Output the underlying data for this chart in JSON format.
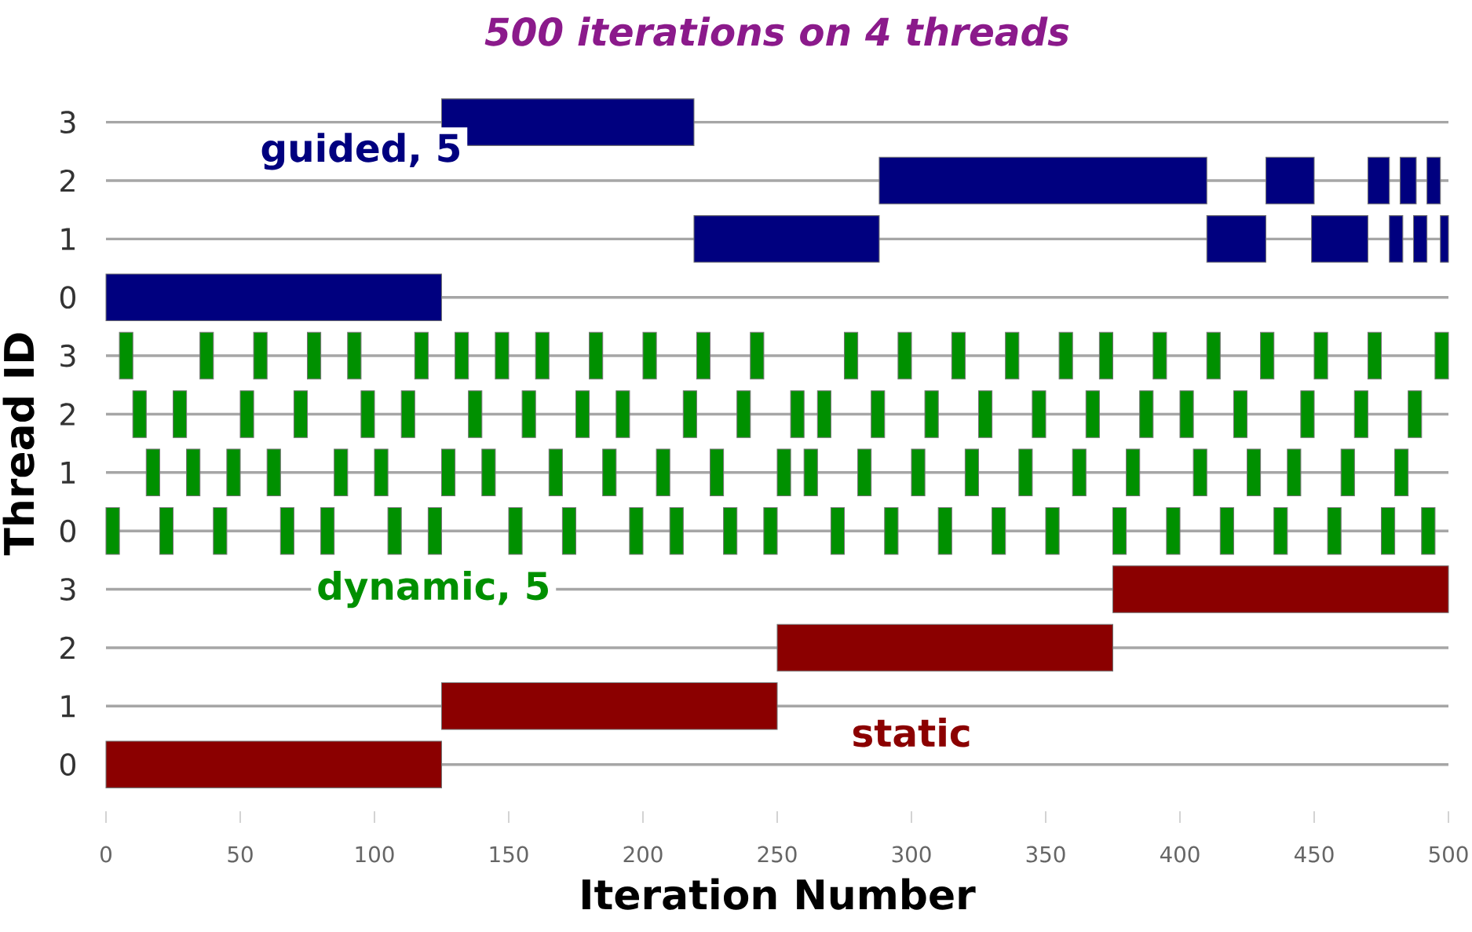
{
  "chart_data": {
    "type": "bar",
    "orientation": "horizontal",
    "title": "500 iterations on 4 threads",
    "xlabel": "Iteration Number",
    "ylabel": "Thread ID",
    "categories": [
      "3",
      "2",
      "1",
      "0",
      "3",
      "2",
      "1",
      "0",
      "3",
      "2",
      "1",
      "0"
    ],
    "xlim": [
      0,
      500
    ],
    "xticks": [
      0,
      50,
      100,
      150,
      200,
      250,
      300,
      350,
      400,
      450,
      500
    ],
    "grid": "y",
    "annotations": [
      "guided, 5",
      "dynamic, 5",
      "static"
    ],
    "series": [
      {
        "colors": [
          "#00007f",
          "#00007f",
          "#00007f",
          "#00007f",
          "#009000",
          "#009000",
          "#009000",
          "#009000",
          "#8b0000",
          "#8b0000",
          "#8b0000",
          "#8b0000"
        ],
        "base": [
          125,
          288,
          219,
          0,
          5,
          10,
          15,
          0,
          375,
          250,
          125,
          0
        ],
        "values": [
          94,
          122,
          69,
          125,
          5,
          5,
          5,
          5,
          125,
          125,
          125,
          125
        ]
      },
      {
        "colors": [
          "#00007f",
          "#00007f",
          "#00007f",
          "#00007f",
          "#009000",
          "#009000",
          "#009000",
          "#009000",
          "#8b0000",
          "#8b0000",
          "#8b0000",
          "#8b0000"
        ],
        "base": [
          null,
          432,
          410,
          null,
          35,
          25,
          30,
          20,
          null,
          null,
          null,
          null
        ],
        "values": [
          null,
          18,
          22,
          null,
          5,
          5,
          5,
          5,
          null,
          null,
          null,
          null
        ]
      },
      {
        "colors": [
          "#00007f",
          "#00007f",
          "#00007f",
          "#00007f",
          "#009000",
          "#009000",
          "#009000",
          "#009000",
          "#8b0000",
          "#8b0000",
          "#8b0000",
          "#8b0000"
        ],
        "base": [
          null,
          470,
          449,
          null,
          55,
          50,
          45,
          40,
          null,
          null,
          null,
          null
        ],
        "values": [
          null,
          8,
          21,
          null,
          5,
          5,
          5,
          5,
          null,
          null,
          null,
          null
        ]
      },
      {
        "colors": [
          "#00007f",
          "#00007f",
          "#00007f",
          "#00007f",
          "#009000",
          "#009000",
          "#009000",
          "#009000",
          "#8b0000",
          "#8b0000",
          "#8b0000",
          "#8b0000"
        ],
        "base": [
          null,
          482,
          478,
          null,
          75,
          70,
          60,
          65,
          null,
          null,
          null,
          null
        ],
        "values": [
          null,
          6,
          5,
          null,
          5,
          5,
          5,
          5,
          null,
          null,
          null,
          null
        ]
      },
      {
        "colors": [
          "#00007f",
          "#00007f",
          "#00007f",
          "#00007f",
          "#009000",
          "#009000",
          "#009000",
          "#009000",
          "#8b0000",
          "#8b0000",
          "#8b0000",
          "#8b0000"
        ],
        "base": [
          null,
          492,
          487,
          null,
          90,
          95,
          85,
          80,
          null,
          null,
          null,
          null
        ],
        "values": [
          null,
          5,
          5,
          null,
          5,
          5,
          5,
          5,
          null,
          null,
          null,
          null
        ]
      },
      {
        "colors": [
          "#00007f",
          "#00007f",
          "#00007f",
          "#00007f",
          "#009000",
          "#009000",
          "#009000",
          "#009000",
          "#8b0000",
          "#8b0000",
          "#8b0000",
          "#8b0000"
        ],
        "base": [
          null,
          null,
          497,
          null,
          115,
          110,
          100,
          105,
          null,
          null,
          null,
          null
        ],
        "values": [
          null,
          null,
          3,
          null,
          5,
          5,
          5,
          5,
          null,
          null,
          null,
          null
        ]
      },
      {
        "colors": [
          "#00007f",
          "#00007f",
          "#00007f",
          "#00007f",
          "#009000",
          "#009000",
          "#009000",
          "#009000",
          "#8b0000",
          "#8b0000",
          "#8b0000",
          "#8b0000"
        ],
        "base": [
          null,
          null,
          null,
          null,
          130,
          135,
          125,
          120,
          null,
          null,
          null,
          null
        ],
        "values": [
          null,
          null,
          null,
          null,
          5,
          5,
          5,
          5,
          null,
          null,
          null,
          null
        ]
      },
      {
        "colors": [
          "#00007f",
          "#00007f",
          "#00007f",
          "#00007f",
          "#009000",
          "#009000",
          "#009000",
          "#009000",
          "#8b0000",
          "#8b0000",
          "#8b0000",
          "#8b0000"
        ],
        "base": [
          null,
          null,
          null,
          null,
          145,
          155,
          140,
          150,
          null,
          null,
          null,
          null
        ],
        "values": [
          null,
          null,
          null,
          null,
          5,
          5,
          5,
          5,
          null,
          null,
          null,
          null
        ]
      },
      {
        "colors": [
          "#00007f",
          "#00007f",
          "#00007f",
          "#00007f",
          "#009000",
          "#009000",
          "#009000",
          "#009000",
          "#8b0000",
          "#8b0000",
          "#8b0000",
          "#8b0000"
        ],
        "base": [
          null,
          null,
          null,
          null,
          160,
          175,
          165,
          170,
          null,
          null,
          null,
          null
        ],
        "values": [
          null,
          null,
          null,
          null,
          5,
          5,
          5,
          5,
          null,
          null,
          null,
          null
        ]
      },
      {
        "colors": [
          "#00007f",
          "#00007f",
          "#00007f",
          "#00007f",
          "#009000",
          "#009000",
          "#009000",
          "#009000",
          "#8b0000",
          "#8b0000",
          "#8b0000",
          "#8b0000"
        ],
        "base": [
          null,
          null,
          null,
          null,
          180,
          190,
          185,
          195,
          null,
          null,
          null,
          null
        ],
        "values": [
          null,
          null,
          null,
          null,
          5,
          5,
          5,
          5,
          null,
          null,
          null,
          null
        ]
      },
      {
        "colors": [
          "#00007f",
          "#00007f",
          "#00007f",
          "#00007f",
          "#009000",
          "#009000",
          "#009000",
          "#009000",
          "#8b0000",
          "#8b0000",
          "#8b0000",
          "#8b0000"
        ],
        "base": [
          null,
          null,
          null,
          null,
          200,
          215,
          205,
          210,
          null,
          null,
          null,
          null
        ],
        "values": [
          null,
          null,
          null,
          null,
          5,
          5,
          5,
          5,
          null,
          null,
          null,
          null
        ]
      },
      {
        "colors": [
          "#00007f",
          "#00007f",
          "#00007f",
          "#00007f",
          "#009000",
          "#009000",
          "#009000",
          "#009000",
          "#8b0000",
          "#8b0000",
          "#8b0000",
          "#8b0000"
        ],
        "base": [
          null,
          null,
          null,
          null,
          220,
          235,
          225,
          230,
          null,
          null,
          null,
          null
        ],
        "values": [
          null,
          null,
          null,
          null,
          5,
          5,
          5,
          5,
          null,
          null,
          null,
          null
        ]
      },
      {
        "colors": [
          "#00007f",
          "#00007f",
          "#00007f",
          "#00007f",
          "#009000",
          "#009000",
          "#009000",
          "#009000",
          "#8b0000",
          "#8b0000",
          "#8b0000",
          "#8b0000"
        ],
        "base": [
          null,
          null,
          null,
          null,
          240,
          255,
          250,
          245,
          null,
          null,
          null,
          null
        ],
        "values": [
          null,
          null,
          null,
          null,
          5,
          5,
          5,
          5,
          null,
          null,
          null,
          null
        ]
      },
      {
        "colors": [
          "#00007f",
          "#00007f",
          "#00007f",
          "#00007f",
          "#009000",
          "#009000",
          "#009000",
          "#009000",
          "#8b0000",
          "#8b0000",
          "#8b0000",
          "#8b0000"
        ],
        "base": [
          null,
          null,
          null,
          null,
          275,
          265,
          260,
          270,
          null,
          null,
          null,
          null
        ],
        "values": [
          null,
          null,
          null,
          null,
          5,
          5,
          5,
          5,
          null,
          null,
          null,
          null
        ]
      },
      {
        "colors": [
          "#00007f",
          "#00007f",
          "#00007f",
          "#00007f",
          "#009000",
          "#009000",
          "#009000",
          "#009000",
          "#8b0000",
          "#8b0000",
          "#8b0000",
          "#8b0000"
        ],
        "base": [
          null,
          null,
          null,
          null,
          295,
          285,
          280,
          290,
          null,
          null,
          null,
          null
        ],
        "values": [
          null,
          null,
          null,
          null,
          5,
          5,
          5,
          5,
          null,
          null,
          null,
          null
        ]
      },
      {
        "colors": [
          "#00007f",
          "#00007f",
          "#00007f",
          "#00007f",
          "#009000",
          "#009000",
          "#009000",
          "#009000",
          "#8b0000",
          "#8b0000",
          "#8b0000",
          "#8b0000"
        ],
        "base": [
          null,
          null,
          null,
          null,
          315,
          305,
          300,
          310,
          null,
          null,
          null,
          null
        ],
        "values": [
          null,
          null,
          null,
          null,
          5,
          5,
          5,
          5,
          null,
          null,
          null,
          null
        ]
      },
      {
        "colors": [
          "#00007f",
          "#00007f",
          "#00007f",
          "#00007f",
          "#009000",
          "#009000",
          "#009000",
          "#009000",
          "#8b0000",
          "#8b0000",
          "#8b0000",
          "#8b0000"
        ],
        "base": [
          null,
          null,
          null,
          null,
          335,
          325,
          320,
          330,
          null,
          null,
          null,
          null
        ],
        "values": [
          null,
          null,
          null,
          null,
          5,
          5,
          5,
          5,
          null,
          null,
          null,
          null
        ]
      },
      {
        "colors": [
          "#00007f",
          "#00007f",
          "#00007f",
          "#00007f",
          "#009000",
          "#009000",
          "#009000",
          "#009000",
          "#8b0000",
          "#8b0000",
          "#8b0000",
          "#8b0000"
        ],
        "base": [
          null,
          null,
          null,
          null,
          355,
          345,
          340,
          350,
          null,
          null,
          null,
          null
        ],
        "values": [
          null,
          null,
          null,
          null,
          5,
          5,
          5,
          5,
          null,
          null,
          null,
          null
        ]
      },
      {
        "colors": [
          "#00007f",
          "#00007f",
          "#00007f",
          "#00007f",
          "#009000",
          "#009000",
          "#009000",
          "#009000",
          "#8b0000",
          "#8b0000",
          "#8b0000",
          "#8b0000"
        ],
        "base": [
          null,
          null,
          null,
          null,
          370,
          365,
          360,
          375,
          null,
          null,
          null,
          null
        ],
        "values": [
          null,
          null,
          null,
          null,
          5,
          5,
          5,
          5,
          null,
          null,
          null,
          null
        ]
      },
      {
        "colors": [
          "#00007f",
          "#00007f",
          "#00007f",
          "#00007f",
          "#009000",
          "#009000",
          "#009000",
          "#009000",
          "#8b0000",
          "#8b0000",
          "#8b0000",
          "#8b0000"
        ],
        "base": [
          null,
          null,
          null,
          null,
          390,
          385,
          380,
          395,
          null,
          null,
          null,
          null
        ],
        "values": [
          null,
          null,
          null,
          null,
          5,
          5,
          5,
          5,
          null,
          null,
          null,
          null
        ]
      },
      {
        "colors": [
          "#00007f",
          "#00007f",
          "#00007f",
          "#00007f",
          "#009000",
          "#009000",
          "#009000",
          "#009000",
          "#8b0000",
          "#8b0000",
          "#8b0000",
          "#8b0000"
        ],
        "base": [
          null,
          null,
          null,
          null,
          410,
          400,
          405,
          415,
          null,
          null,
          null,
          null
        ],
        "values": [
          null,
          null,
          null,
          null,
          5,
          5,
          5,
          5,
          null,
          null,
          null,
          null
        ]
      },
      {
        "colors": [
          "#00007f",
          "#00007f",
          "#00007f",
          "#00007f",
          "#009000",
          "#009000",
          "#009000",
          "#009000",
          "#8b0000",
          "#8b0000",
          "#8b0000",
          "#8b0000"
        ],
        "base": [
          null,
          null,
          null,
          null,
          430,
          420,
          425,
          435,
          null,
          null,
          null,
          null
        ],
        "values": [
          null,
          null,
          null,
          null,
          5,
          5,
          5,
          5,
          null,
          null,
          null,
          null
        ]
      },
      {
        "colors": [
          "#00007f",
          "#00007f",
          "#00007f",
          "#00007f",
          "#009000",
          "#009000",
          "#009000",
          "#009000",
          "#8b0000",
          "#8b0000",
          "#8b0000",
          "#8b0000"
        ],
        "base": [
          null,
          null,
          null,
          null,
          450,
          445,
          440,
          455,
          null,
          null,
          null,
          null
        ],
        "values": [
          null,
          null,
          null,
          null,
          5,
          5,
          5,
          5,
          null,
          null,
          null,
          null
        ]
      },
      {
        "colors": [
          "#00007f",
          "#00007f",
          "#00007f",
          "#00007f",
          "#009000",
          "#009000",
          "#009000",
          "#009000",
          "#8b0000",
          "#8b0000",
          "#8b0000",
          "#8b0000"
        ],
        "base": [
          null,
          null,
          null,
          null,
          470,
          465,
          460,
          475,
          null,
          null,
          null,
          null
        ],
        "values": [
          null,
          null,
          null,
          null,
          5,
          5,
          5,
          5,
          null,
          null,
          null,
          null
        ]
      },
      {
        "colors": [
          "#00007f",
          "#00007f",
          "#00007f",
          "#00007f",
          "#009000",
          "#009000",
          "#009000",
          "#009000",
          "#8b0000",
          "#8b0000",
          "#8b0000",
          "#8b0000"
        ],
        "base": [
          null,
          null,
          null,
          null,
          495,
          485,
          480,
          490,
          null,
          null,
          null,
          null
        ],
        "values": [
          null,
          null,
          null,
          null,
          5,
          5,
          5,
          5,
          null,
          null,
          null,
          null
        ]
      }
    ]
  }
}
